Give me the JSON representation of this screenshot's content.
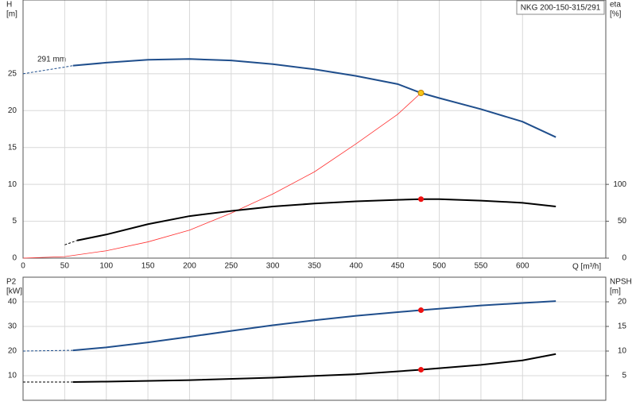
{
  "chart_data": [
    {
      "type": "line",
      "title": "NKG 200-150-315/291",
      "annotation": "291 mm",
      "ylabel": "H",
      "yunit": "[m]",
      "y2label": "eta",
      "y2unit": "[%]",
      "xlabel": "Q [m³/h]",
      "xlim": [
        0,
        700
      ],
      "xticks": [
        0,
        50,
        100,
        150,
        200,
        250,
        300,
        350,
        400,
        450,
        500,
        550,
        600
      ],
      "ylim": [
        0,
        35
      ],
      "yticks": [
        0,
        5,
        10,
        15,
        20,
        25
      ],
      "y2lim": [
        0,
        350
      ],
      "y2ticks": [
        0,
        50,
        100
      ],
      "grid": true,
      "series": [
        {
          "color": "#1f4e8c",
          "style": "dashed",
          "axis": "y",
          "x": [
            0,
            50,
            60
          ],
          "values": [
            25,
            25.9,
            26.1
          ]
        },
        {
          "color": "#1f4e8c",
          "style": "solid",
          "axis": "y",
          "x": [
            60,
            100,
            150,
            200,
            250,
            300,
            350,
            400,
            450,
            478,
            500,
            550,
            600,
            640
          ],
          "values": [
            26.1,
            26.5,
            26.9,
            27.0,
            26.8,
            26.3,
            25.6,
            24.7,
            23.6,
            22.4,
            21.7,
            20.2,
            18.5,
            16.4
          ]
        },
        {
          "color": "#ff3030",
          "style": "thin",
          "axis": "y",
          "x": [
            0,
            50,
            100,
            150,
            200,
            250,
            300,
            350,
            400,
            450,
            478
          ],
          "values": [
            0,
            0.2,
            1,
            2.2,
            3.8,
            6.1,
            8.7,
            11.7,
            15.5,
            19.5,
            22.4
          ]
        },
        {
          "color": "#000000",
          "style": "dashed",
          "axis": "y2",
          "x": [
            50,
            65
          ],
          "values": [
            18,
            24
          ]
        },
        {
          "color": "#000000",
          "style": "solid",
          "axis": "y2",
          "x": [
            65,
            100,
            150,
            200,
            250,
            300,
            350,
            400,
            450,
            478,
            500,
            550,
            600,
            640
          ],
          "values": [
            24,
            32,
            46,
            57,
            64,
            70,
            74,
            77,
            79,
            80,
            80,
            78,
            75,
            70
          ]
        },
        {
          "color": "#f5c518",
          "style": "point",
          "axis": "y",
          "x": [
            478
          ],
          "values": [
            22.4
          ]
        },
        {
          "color": "#ee1111",
          "style": "point",
          "axis": "y2",
          "x": [
            478
          ],
          "values": [
            80
          ]
        }
      ]
    },
    {
      "type": "line",
      "ylabel": "P2",
      "yunit": "[kW]",
      "y2label": "NPSH",
      "y2unit": "[m]",
      "xlim": [
        0,
        700
      ],
      "ylim": [
        0,
        50
      ],
      "yticks": [
        10,
        20,
        30,
        40
      ],
      "y2lim": [
        0,
        25
      ],
      "y2ticks": [
        5,
        10,
        15,
        20
      ],
      "grid": true,
      "series": [
        {
          "color": "#1f4e8c",
          "style": "dashed",
          "axis": "y",
          "x": [
            0,
            60
          ],
          "values": [
            20,
            20.3
          ]
        },
        {
          "color": "#1f4e8c",
          "style": "solid",
          "axis": "y",
          "x": [
            60,
            100,
            150,
            200,
            250,
            300,
            350,
            400,
            450,
            478,
            550,
            600,
            640
          ],
          "values": [
            20.3,
            21.5,
            23.5,
            25.8,
            28.2,
            30.5,
            32.5,
            34.3,
            35.8,
            36.6,
            38.5,
            39.5,
            40.3
          ]
        },
        {
          "color": "#000000",
          "style": "dashed",
          "axis": "y2",
          "x": [
            0,
            60
          ],
          "values": [
            3.7,
            3.7
          ]
        },
        {
          "color": "#000000",
          "style": "solid",
          "axis": "y2",
          "x": [
            60,
            100,
            200,
            300,
            400,
            478,
            550,
            600,
            640
          ],
          "values": [
            3.7,
            3.8,
            4.1,
            4.6,
            5.3,
            6.2,
            7.2,
            8.1,
            9.4
          ]
        },
        {
          "color": "#ee1111",
          "style": "point",
          "axis": "y",
          "x": [
            478
          ],
          "values": [
            36.6
          ]
        },
        {
          "color": "#ee1111",
          "style": "point",
          "axis": "y2",
          "x": [
            478
          ],
          "values": [
            6.2
          ]
        }
      ]
    }
  ]
}
